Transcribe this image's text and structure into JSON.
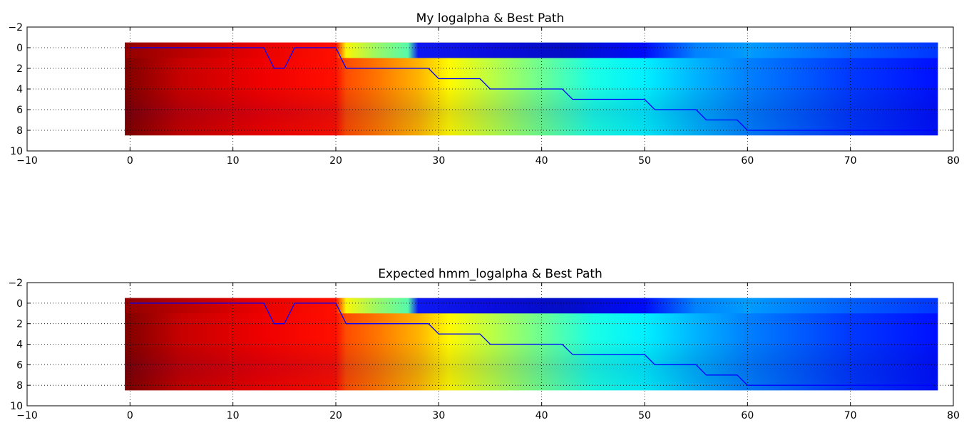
{
  "chart_data": [
    {
      "type": "heatmap",
      "title": "My logalpha & Best Path",
      "xlabel": "",
      "ylabel": "",
      "xlim": [
        -10,
        80
      ],
      "ylim": [
        10,
        -2
      ],
      "xticks": [
        -10,
        0,
        10,
        20,
        30,
        40,
        50,
        60,
        70,
        80
      ],
      "yticks": [
        -2,
        0,
        2,
        4,
        6,
        8,
        10
      ],
      "grid": true,
      "colormap": "jet",
      "image_extent": {
        "x": [
          -0.5,
          78.5
        ],
        "y": [
          -0.5,
          8.5
        ]
      },
      "series": [
        {
          "type": "line",
          "color": "#0000ff",
          "x": [
            0,
            13,
            14,
            15,
            16,
            17,
            18,
            19,
            20,
            21,
            22,
            23,
            24,
            25,
            26,
            27,
            28,
            29,
            30,
            31,
            32,
            33,
            34,
            35,
            36,
            37,
            38,
            39,
            40,
            41,
            42,
            43,
            44,
            45,
            46,
            47,
            48,
            49,
            50,
            51,
            52,
            53,
            54,
            55,
            56,
            57,
            58,
            59,
            60,
            78
          ],
          "y": [
            0,
            0,
            2,
            2,
            0,
            0,
            0,
            0,
            0,
            2,
            2,
            2,
            2,
            2,
            2,
            2,
            2,
            2,
            3,
            3,
            3,
            3,
            3,
            4,
            4,
            4,
            4,
            4,
            4,
            4,
            4,
            5,
            5,
            5,
            5,
            5,
            5,
            5,
            5,
            6,
            6,
            6,
            6,
            6,
            7,
            7,
            7,
            7,
            8,
            8
          ]
        }
      ]
    },
    {
      "type": "heatmap",
      "title": "Expected hmm_logalpha & Best Path",
      "xlabel": "",
      "ylabel": "",
      "xlim": [
        -10,
        80
      ],
      "ylim": [
        10,
        -2
      ],
      "xticks": [
        -10,
        0,
        10,
        20,
        30,
        40,
        50,
        60,
        70,
        80
      ],
      "yticks": [
        -2,
        0,
        2,
        4,
        6,
        8,
        10
      ],
      "grid": true,
      "colormap": "jet",
      "image_extent": {
        "x": [
          -0.5,
          78.5
        ],
        "y": [
          -0.5,
          8.5
        ]
      },
      "series": [
        {
          "type": "line",
          "color": "#0000ff",
          "x": [
            0,
            13,
            14,
            15,
            16,
            17,
            18,
            19,
            20,
            21,
            22,
            23,
            24,
            25,
            26,
            27,
            28,
            29,
            30,
            31,
            32,
            33,
            34,
            35,
            36,
            37,
            38,
            39,
            40,
            41,
            42,
            43,
            44,
            45,
            46,
            47,
            48,
            49,
            50,
            51,
            52,
            53,
            54,
            55,
            56,
            57,
            58,
            59,
            60,
            78
          ],
          "y": [
            0,
            0,
            2,
            2,
            0,
            0,
            0,
            0,
            0,
            2,
            2,
            2,
            2,
            2,
            2,
            2,
            2,
            2,
            3,
            3,
            3,
            3,
            3,
            4,
            4,
            4,
            4,
            4,
            4,
            4,
            4,
            5,
            5,
            5,
            5,
            5,
            5,
            5,
            5,
            6,
            6,
            6,
            6,
            6,
            7,
            7,
            7,
            7,
            8,
            8
          ]
        }
      ]
    }
  ],
  "colors": {
    "path": "#0000ff",
    "grid": "#000000"
  }
}
